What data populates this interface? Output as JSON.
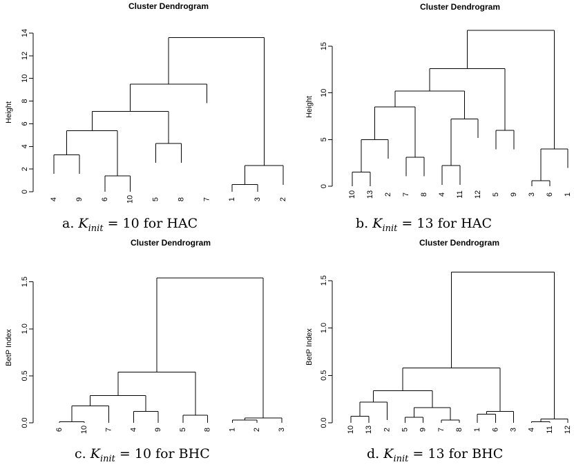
{
  "chart_data": [
    {
      "type": "dendrogram",
      "title": "Cluster Dendrogram",
      "ylabel": "Height",
      "ylim": [
        0,
        14
      ],
      "yticks": [
        0,
        2,
        4,
        6,
        8,
        10,
        12,
        14
      ],
      "leaves": [
        "4",
        "9",
        "6",
        "10",
        "5",
        "8",
        "7",
        "1",
        "3",
        "2"
      ],
      "merges": [
        {
          "a": "L0",
          "b": "L1",
          "h": 3.25
        },
        {
          "a": "L2",
          "b": "L3",
          "h": 1.4
        },
        {
          "a": "N0",
          "b": "N1",
          "h": 5.4
        },
        {
          "a": "L4",
          "b": "L5",
          "h": 4.25
        },
        {
          "a": "N2",
          "b": "N3",
          "h": 7.1
        },
        {
          "a": "N4",
          "b": "L6",
          "h": 9.5
        },
        {
          "a": "L7",
          "b": "L8",
          "h": 0.65
        },
        {
          "a": "N6",
          "b": "L9",
          "h": 2.3
        },
        {
          "a": "N5",
          "b": "N7",
          "h": 13.6
        }
      ],
      "caption": {
        "prefix": "a. ",
        "k": "K",
        "sub": "init",
        "suffix": " = 10 for HAC"
      }
    },
    {
      "type": "dendrogram",
      "title": "Cluster Dendrogram",
      "ylabel": "Height",
      "ylim": [
        0,
        17
      ],
      "yticks": [
        0,
        5,
        10,
        15
      ],
      "leaves": [
        "10",
        "13",
        "2",
        "7",
        "8",
        "4",
        "11",
        "12",
        "5",
        "9",
        "3",
        "6",
        "1"
      ],
      "merges": [
        {
          "a": "L0",
          "b": "L1",
          "h": 1.5
        },
        {
          "a": "N0",
          "b": "L2",
          "h": 5.0
        },
        {
          "a": "L3",
          "b": "L4",
          "h": 3.1
        },
        {
          "a": "N1",
          "b": "N2",
          "h": 8.5
        },
        {
          "a": "L5",
          "b": "L6",
          "h": 2.2
        },
        {
          "a": "N4",
          "b": "L7",
          "h": 7.2
        },
        {
          "a": "N3",
          "b": "N5",
          "h": 10.2
        },
        {
          "a": "L8",
          "b": "L9",
          "h": 6.0
        },
        {
          "a": "N6",
          "b": "N7",
          "h": 12.6
        },
        {
          "a": "L10",
          "b": "L11",
          "h": 0.6
        },
        {
          "a": "N9",
          "b": "L12",
          "h": 4.0
        },
        {
          "a": "N8",
          "b": "N10",
          "h": 16.7
        }
      ],
      "caption": {
        "prefix": "b. ",
        "k": "K",
        "sub": "init",
        "suffix": " = 13 for HAC"
      }
    },
    {
      "type": "dendrogram",
      "title": "Cluster Dendrogram",
      "ylabel": "BetP Index",
      "ylim": [
        0,
        1.6
      ],
      "yticks": [
        "0.0",
        "0.5",
        "1.0",
        "1.5"
      ],
      "leaves": [
        "6",
        "10",
        "7",
        "4",
        "9",
        "5",
        "8",
        "1",
        "2",
        "3"
      ],
      "merges": [
        {
          "a": "L0",
          "b": "L1",
          "h": 0.01
        },
        {
          "a": "N0",
          "b": "L2",
          "h": 0.18
        },
        {
          "a": "L3",
          "b": "L4",
          "h": 0.12
        },
        {
          "a": "N1",
          "b": "N2",
          "h": 0.29
        },
        {
          "a": "L5",
          "b": "L6",
          "h": 0.08
        },
        {
          "a": "N3",
          "b": "N4",
          "h": 0.54
        },
        {
          "a": "L7",
          "b": "L8",
          "h": 0.03
        },
        {
          "a": "N6",
          "b": "L9",
          "h": 0.05
        },
        {
          "a": "N5",
          "b": "N7",
          "h": 1.54
        }
      ],
      "caption": {
        "prefix": "c. ",
        "k": "K",
        "sub": "init",
        "suffix": " = 10 for BHC"
      }
    },
    {
      "type": "dendrogram",
      "title": "Cluster Dendrogram",
      "ylabel": "BetP Index",
      "ylim": [
        0,
        1.6
      ],
      "yticks": [
        "0.0",
        "0.5",
        "1.0",
        "1.5"
      ],
      "leaves": [
        "10",
        "13",
        "2",
        "5",
        "9",
        "7",
        "8",
        "1",
        "6",
        "3",
        "4",
        "11",
        "12"
      ],
      "merges": [
        {
          "a": "L0",
          "b": "L1",
          "h": 0.07
        },
        {
          "a": "N0",
          "b": "L2",
          "h": 0.22
        },
        {
          "a": "L3",
          "b": "L4",
          "h": 0.06
        },
        {
          "a": "L5",
          "b": "L6",
          "h": 0.03
        },
        {
          "a": "N2",
          "b": "N3",
          "h": 0.16
        },
        {
          "a": "N1",
          "b": "N4",
          "h": 0.34
        },
        {
          "a": "L7",
          "b": "L8",
          "h": 0.09
        },
        {
          "a": "N6",
          "b": "L9",
          "h": 0.12
        },
        {
          "a": "N5",
          "b": "N7",
          "h": 0.58
        },
        {
          "a": "L10",
          "b": "L11",
          "h": 0.01
        },
        {
          "a": "N9",
          "b": "L12",
          "h": 0.04
        },
        {
          "a": "N8",
          "b": "N10",
          "h": 1.59
        }
      ],
      "caption": {
        "prefix": "d. ",
        "k": "K",
        "sub": "init",
        "suffix": " = 13 for BHC"
      }
    }
  ]
}
